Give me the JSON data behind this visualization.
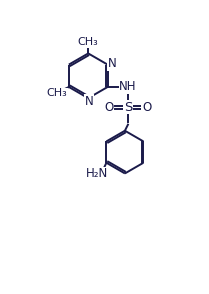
{
  "bg_color": "#ffffff",
  "line_color": "#1a1a4a",
  "line_width": 1.4,
  "font_size": 8.5,
  "figsize": [
    2.09,
    2.94
  ],
  "dpi": 100,
  "xlim": [
    0,
    10
  ],
  "ylim": [
    0,
    14
  ]
}
